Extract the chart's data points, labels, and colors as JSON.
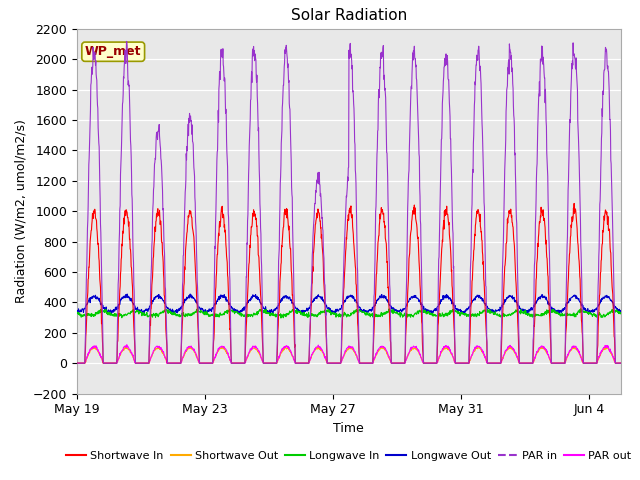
{
  "title": "Solar Radiation",
  "xlabel": "Time",
  "ylabel": "Radiation (W/m2, umol/m2/s)",
  "ylim": [
    -200,
    2200
  ],
  "yticks": [
    -200,
    0,
    200,
    400,
    600,
    800,
    1000,
    1200,
    1400,
    1600,
    1800,
    2000,
    2200
  ],
  "xtick_labels": [
    "May 19",
    "May 23",
    "May 27",
    "May 31",
    "Jun 4"
  ],
  "xtick_positions": [
    0,
    4,
    8,
    12,
    16
  ],
  "n_days": 17,
  "bg_color": "#e8e8e8",
  "fig_bg": "#ffffff",
  "grid_color": "#ffffff",
  "series_colors": {
    "shortwave_in": "#ff0000",
    "shortwave_out": "#ffaa00",
    "longwave_in": "#00cc00",
    "longwave_out": "#0000cc",
    "par_in": "#9933cc",
    "par_out": "#ff00ff"
  },
  "legend_labels": [
    "Shortwave In",
    "Shortwave Out",
    "Longwave In",
    "Longwave Out",
    "PAR in",
    "PAR out"
  ],
  "wp_met_label": "WP_met",
  "wp_met_bg": "#ffffcc",
  "wp_met_border": "#999900",
  "wp_met_text_color": "#990000",
  "title_fontsize": 11,
  "axis_label_fontsize": 9,
  "tick_fontsize": 9,
  "legend_fontsize": 8
}
